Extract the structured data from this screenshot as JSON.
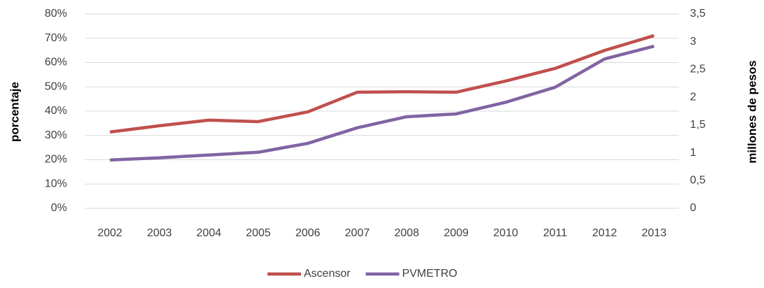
{
  "chart_data": {
    "type": "line",
    "y_label": "porcentaje",
    "y2_label": "millones de pesos",
    "categories": [
      "2002",
      "2003",
      "2004",
      "2005",
      "2006",
      "2007",
      "2008",
      "2009",
      "2010",
      "2011",
      "2012",
      "2013"
    ],
    "series": [
      {
        "name": "Ascensor",
        "color": "#c0504d",
        "values": [
          31.4,
          34,
          36.3,
          35.7,
          39.7,
          47.8,
          48,
          47.8,
          52.4,
          57.6,
          65,
          71.1
        ]
      },
      {
        "name": "PVMETRO",
        "color": "#8064a2",
        "axis": "y2",
        "values": [
          0.87,
          0.91,
          0.96,
          1.01,
          1.17,
          1.45,
          1.65,
          1.7,
          1.91,
          2.18,
          2.69,
          2.92
        ]
      }
    ],
    "ylim": [
      0,
      80
    ],
    "yticks": [
      {
        "value": 0,
        "label": "0%"
      },
      {
        "value": 10,
        "label": "10%"
      },
      {
        "value": 20,
        "label": "20%"
      },
      {
        "value": 30,
        "label": "30%"
      },
      {
        "value": 40,
        "label": "40%"
      },
      {
        "value": 50,
        "label": "50%"
      },
      {
        "value": 60,
        "label": "60%"
      },
      {
        "value": 70,
        "label": "70%"
      },
      {
        "value": 80,
        "label": "80%"
      }
    ],
    "y2lim": [
      0,
      3.5
    ],
    "y2ticks": [
      0,
      {
        "value": 0.5,
        "label": "0,5"
      },
      1,
      {
        "value": 1.5,
        "label": "1,5"
      },
      2,
      {
        "value": 2.5,
        "label": "2,5"
      },
      3,
      {
        "value": 3.5,
        "label": "3,5"
      }
    ],
    "grid": true,
    "legend": "bottom"
  }
}
